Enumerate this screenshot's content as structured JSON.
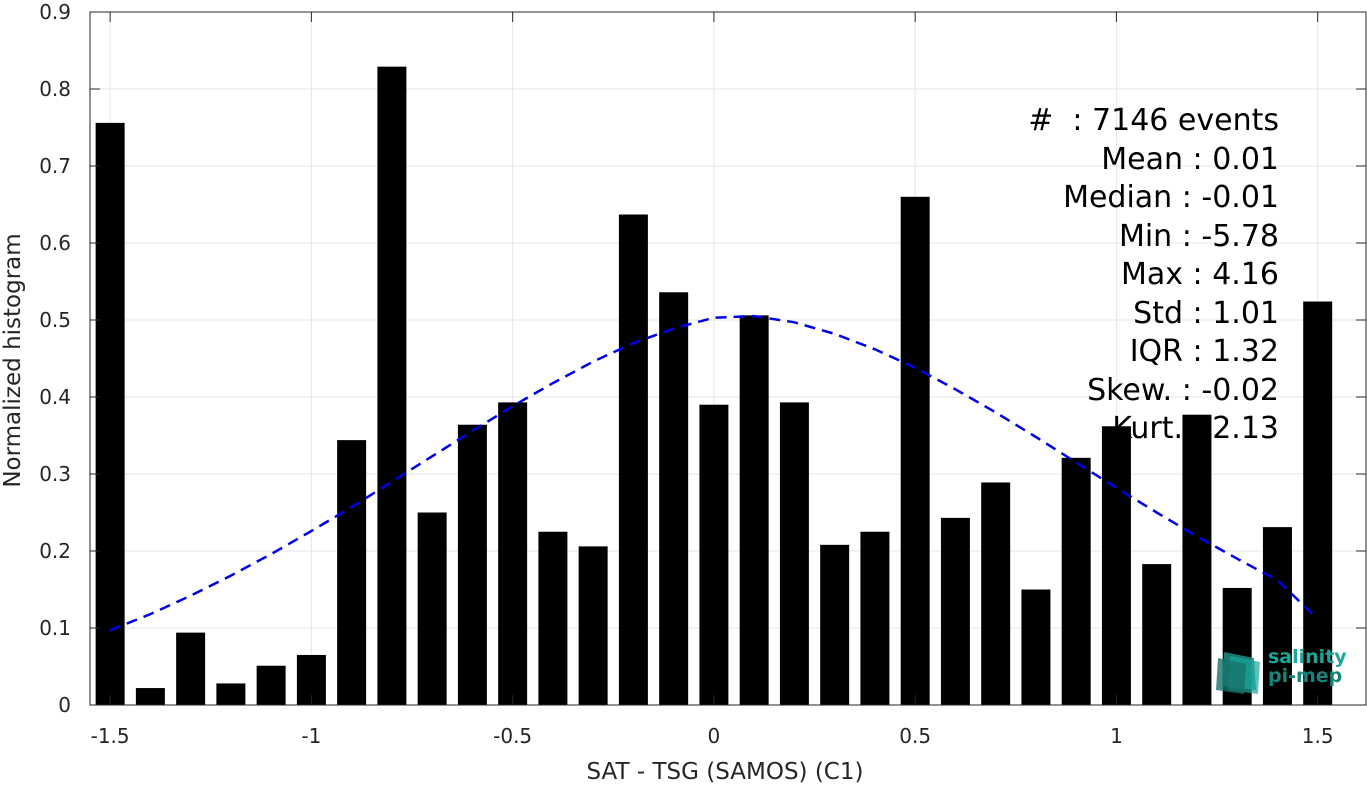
{
  "chart_data": {
    "type": "bar",
    "xlabel": "SAT - TSG (SAMOS) (C1)",
    "ylabel": "Normalized histogram",
    "xlim": [
      -1.55,
      1.62
    ],
    "ylim": [
      0,
      0.9
    ],
    "xticks": [
      -1.5,
      -1,
      -0.5,
      0,
      0.5,
      1,
      1.5
    ],
    "xtick_labels": [
      "-1.5",
      "-1",
      "-0.5",
      "0",
      "0.5",
      "1",
      "1.5"
    ],
    "yticks": [
      0,
      0.1,
      0.2,
      0.3,
      0.4,
      0.5,
      0.6,
      0.7,
      0.8,
      0.9
    ],
    "ytick_labels": [
      "0",
      "0.1",
      "0.2",
      "0.3",
      "0.4",
      "0.5",
      "0.6",
      "0.7",
      "0.8",
      "0.9"
    ],
    "grid": true,
    "bar_color": "#000000",
    "x": [
      -1.5,
      -1.4,
      -1.3,
      -1.2,
      -1.1,
      -1.0,
      -0.9,
      -0.8,
      -0.7,
      -0.6,
      -0.5,
      -0.4,
      -0.3,
      -0.2,
      -0.1,
      0.0,
      0.1,
      0.2,
      0.3,
      0.4,
      0.5,
      0.6,
      0.7,
      0.8,
      0.9,
      1.0,
      1.1,
      1.2,
      1.3,
      1.4,
      1.5
    ],
    "values": [
      0.756,
      0.022,
      0.094,
      0.028,
      0.051,
      0.065,
      0.344,
      0.829,
      0.25,
      0.364,
      0.393,
      0.225,
      0.206,
      0.637,
      0.536,
      0.39,
      0.506,
      0.393,
      0.208,
      0.225,
      0.66,
      0.243,
      0.289,
      0.15,
      0.321,
      0.362,
      0.183,
      0.377,
      0.152,
      0.231,
      0.524
    ],
    "fit": {
      "type": "gaussian",
      "color": "#0000e6",
      "style": "dashed",
      "x": [
        -1.5,
        -1.4,
        -1.3,
        -1.2,
        -1.1,
        -1.0,
        -0.9,
        -0.8,
        -0.7,
        -0.6,
        -0.5,
        -0.4,
        -0.3,
        -0.2,
        -0.1,
        0.0,
        0.1,
        0.2,
        0.3,
        0.4,
        0.5,
        0.6,
        0.7,
        0.8,
        0.9,
        1.0,
        1.1,
        1.2,
        1.3,
        1.4,
        1.5
      ],
      "y": [
        0.097,
        0.118,
        0.142,
        0.168,
        0.196,
        0.226,
        0.257,
        0.29,
        0.323,
        0.356,
        0.388,
        0.418,
        0.446,
        0.47,
        0.489,
        0.503,
        0.505,
        0.497,
        0.482,
        0.462,
        0.438,
        0.41,
        0.38,
        0.348,
        0.315,
        0.282,
        0.25,
        0.219,
        0.19,
        0.162,
        0.112
      ]
    },
    "stats": [
      "#  : 7146 events",
      "Mean : 0.01",
      "Median : -0.01",
      "Min : -5.78",
      "Max : 4.16",
      "Std : 1.01",
      "IQR : 1.32",
      "Skew. : -0.02",
      "Kurt. : 2.13"
    ]
  },
  "logo": {
    "line1": "salinity",
    "line2": "pi-mep"
  }
}
